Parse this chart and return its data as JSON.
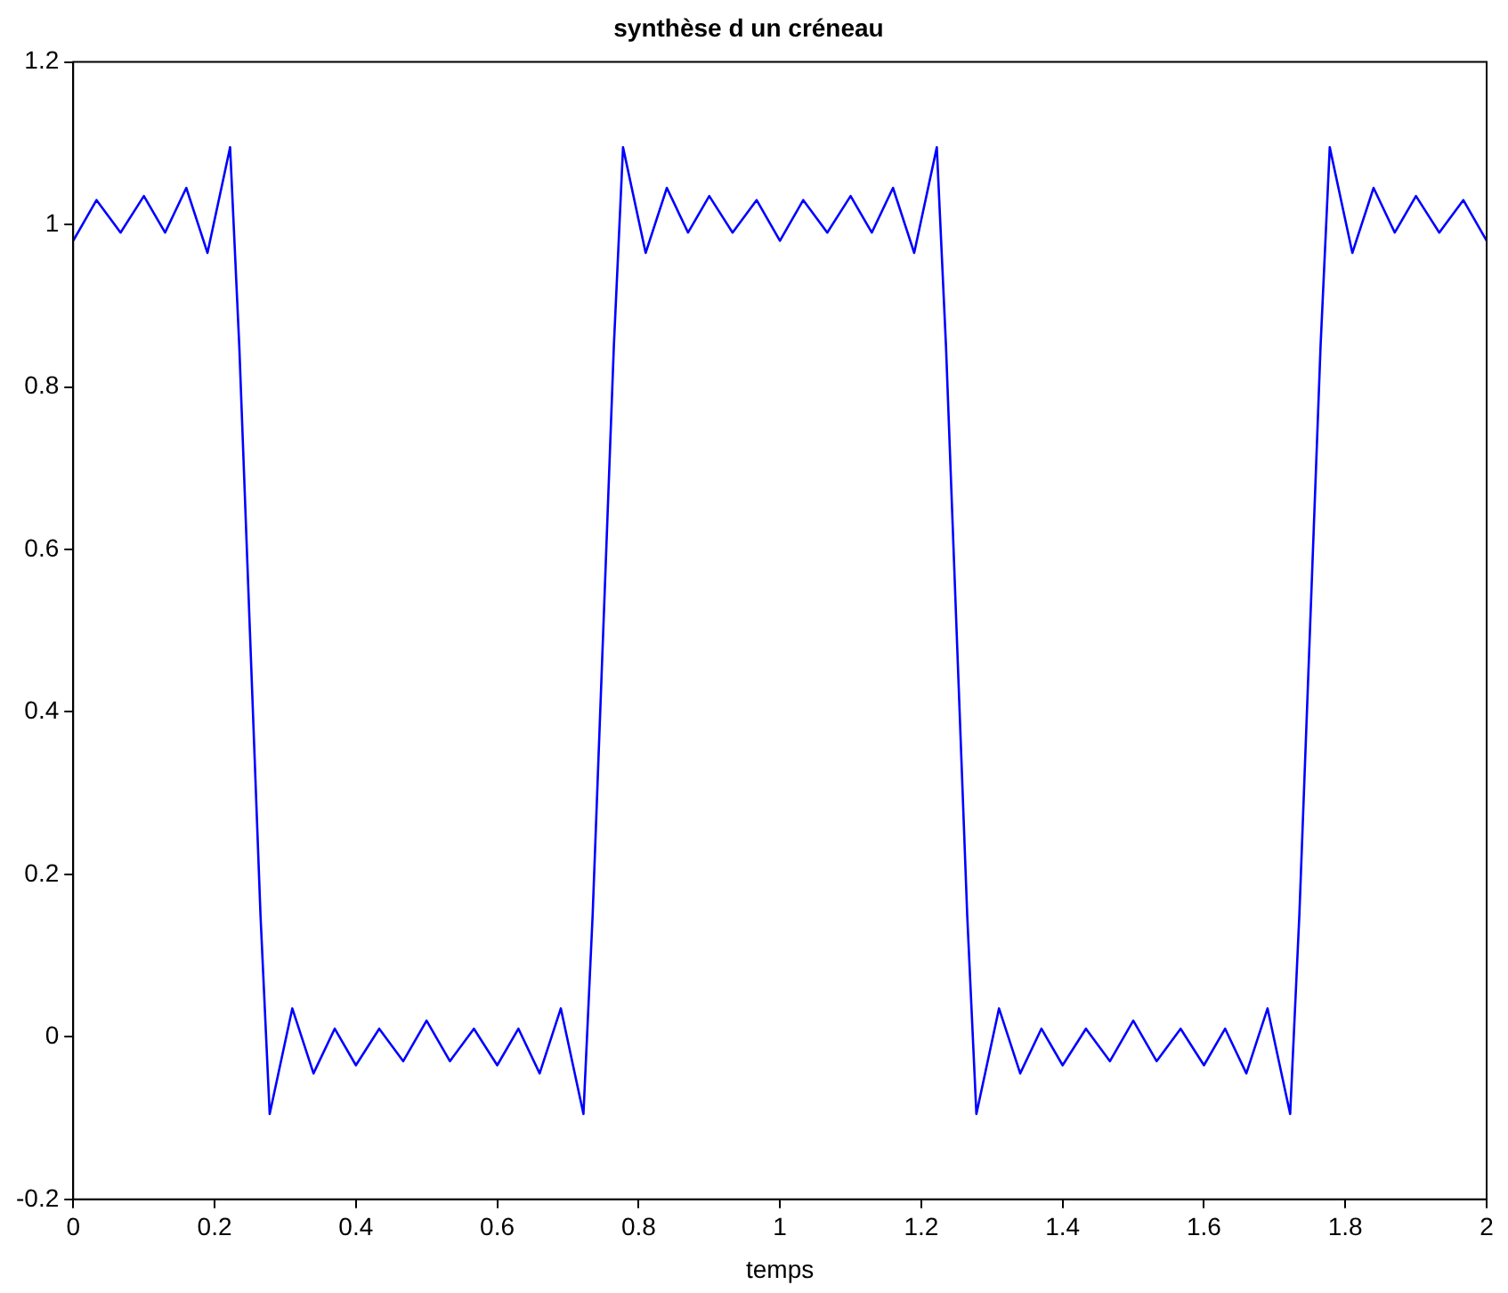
{
  "chart_data": {
    "type": "line",
    "title": "synthèse d un créneau",
    "xlabel": "temps",
    "xlim": [
      0,
      2
    ],
    "xticks": [
      0,
      0.2,
      0.4,
      0.6,
      0.8,
      1,
      1.2,
      1.4,
      1.6,
      1.8,
      2
    ],
    "ylim": [
      -0.2,
      1.2
    ],
    "yticks": [
      -0.2,
      0,
      0.2,
      0.4,
      0.6,
      0.8,
      1,
      1.2
    ],
    "grid": false,
    "legend": false,
    "marker": "none",
    "line_style": "solid",
    "series": [
      {
        "color": "#0000ff",
        "x": [
          0,
          0.033,
          0.067,
          0.1,
          0.13,
          0.16,
          0.19,
          0.222,
          0.235,
          0.25,
          0.265,
          0.278,
          0.31,
          0.34,
          0.37,
          0.4,
          0.433,
          0.467,
          0.5,
          0.533,
          0.567,
          0.6,
          0.63,
          0.66,
          0.69,
          0.722,
          0.735,
          0.75,
          0.765,
          0.778,
          0.81,
          0.84,
          0.87,
          0.9,
          0.933,
          0.967,
          1,
          1.033,
          1.067,
          1.1,
          1.13,
          1.16,
          1.19,
          1.222,
          1.235,
          1.25,
          1.265,
          1.278,
          1.31,
          1.34,
          1.37,
          1.4,
          1.433,
          1.467,
          1.5,
          1.533,
          1.567,
          1.6,
          1.63,
          1.66,
          1.69,
          1.722,
          1.735,
          1.75,
          1.765,
          1.778,
          1.81,
          1.84,
          1.87,
          1.9,
          1.933,
          1.967,
          2
        ],
        "values": [
          0.98,
          1.03,
          0.99,
          1.035,
          0.99,
          1.045,
          0.965,
          1.095,
          0.85,
          0.5,
          0.15,
          -0.095,
          0.035,
          -0.045,
          0.01,
          -0.035,
          0.01,
          -0.03,
          0.02,
          -0.03,
          0.01,
          -0.035,
          0.01,
          -0.045,
          0.035,
          -0.095,
          0.15,
          0.5,
          0.85,
          1.095,
          0.965,
          1.045,
          0.99,
          1.035,
          0.99,
          1.03,
          0.98,
          1.03,
          0.99,
          1.035,
          0.99,
          1.045,
          0.965,
          1.095,
          0.85,
          0.5,
          0.15,
          -0.095,
          0.035,
          -0.045,
          0.01,
          -0.035,
          0.01,
          -0.03,
          0.02,
          -0.03,
          0.01,
          -0.035,
          0.01,
          -0.045,
          0.035,
          -0.095,
          0.15,
          0.5,
          0.85,
          1.095,
          0.965,
          1.045,
          0.99,
          1.035,
          0.99,
          1.03,
          0.98
        ]
      }
    ]
  }
}
